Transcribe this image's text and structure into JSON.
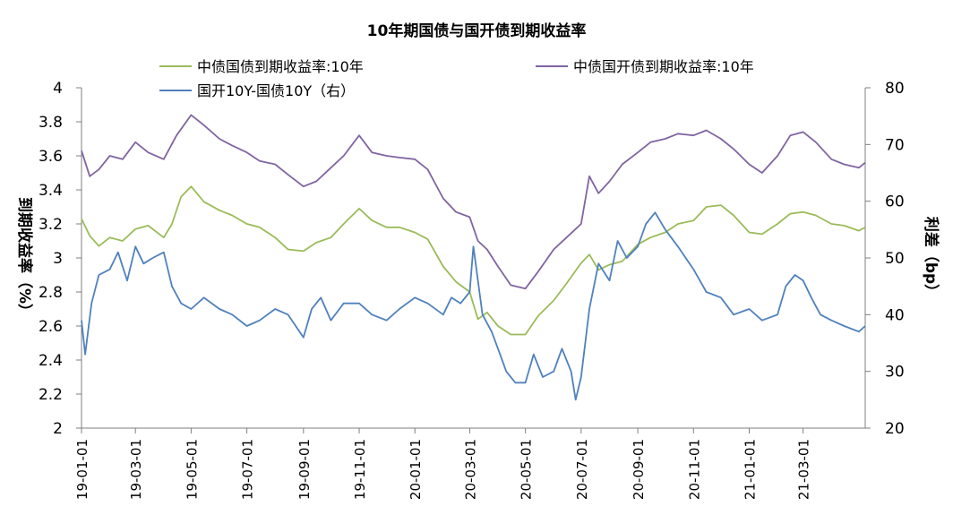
{
  "chart_data": {
    "type": "line",
    "title": "10年期国债与国开债到期收益率",
    "ylabel": "到期收益率（%）",
    "y2label": "利差（bp）",
    "xlabel": "",
    "ylim": [
      2,
      4
    ],
    "y2lim": [
      20,
      80
    ],
    "yticks": [
      "4",
      "3.8",
      "3.6",
      "3.4",
      "3.2",
      "3",
      "2.8",
      "2.6",
      "2.4",
      "2.2",
      "2"
    ],
    "y2ticks": [
      "80",
      "70",
      "60",
      "50",
      "40",
      "30",
      "20"
    ],
    "xlim": [
      "2019-01-01",
      "2021-05-08"
    ],
    "xticks": [
      "19-01-01",
      "19-03-01",
      "19-05-01",
      "19-07-01",
      "19-09-01",
      "19-11-01",
      "20-01-01",
      "20-03-01",
      "20-05-01",
      "20-07-01",
      "20-09-01",
      "20-11-01",
      "21-01-01",
      "21-03-01"
    ],
    "xtick_dates": [
      "2019-01-01",
      "2019-03-01",
      "2019-05-01",
      "2019-07-01",
      "2019-09-01",
      "2019-11-01",
      "2020-01-01",
      "2020-03-01",
      "2020-05-01",
      "2020-07-01",
      "2020-09-01",
      "2020-11-01",
      "2021-01-01",
      "2021-03-01"
    ],
    "legend_position": "top",
    "series": [
      {
        "name": "中债国债到期收益率:10年",
        "axis": "left",
        "color": "#9bbb59",
        "points": [
          [
            "2019-01-01",
            3.23
          ],
          [
            "2019-01-10",
            3.13
          ],
          [
            "2019-01-20",
            3.07
          ],
          [
            "2019-02-01",
            3.12
          ],
          [
            "2019-02-15",
            3.1
          ],
          [
            "2019-03-01",
            3.17
          ],
          [
            "2019-03-15",
            3.19
          ],
          [
            "2019-04-01",
            3.12
          ],
          [
            "2019-04-10",
            3.2
          ],
          [
            "2019-04-20",
            3.36
          ],
          [
            "2019-05-01",
            3.42
          ],
          [
            "2019-05-15",
            3.33
          ],
          [
            "2019-06-01",
            3.28
          ],
          [
            "2019-06-15",
            3.25
          ],
          [
            "2019-07-01",
            3.2
          ],
          [
            "2019-07-15",
            3.18
          ],
          [
            "2019-08-01",
            3.12
          ],
          [
            "2019-08-15",
            3.05
          ],
          [
            "2019-09-01",
            3.04
          ],
          [
            "2019-09-15",
            3.09
          ],
          [
            "2019-10-01",
            3.12
          ],
          [
            "2019-10-15",
            3.2
          ],
          [
            "2019-11-01",
            3.29
          ],
          [
            "2019-11-15",
            3.22
          ],
          [
            "2019-12-01",
            3.18
          ],
          [
            "2019-12-15",
            3.18
          ],
          [
            "2020-01-01",
            3.15
          ],
          [
            "2020-01-15",
            3.11
          ],
          [
            "2020-02-01",
            2.95
          ],
          [
            "2020-02-15",
            2.86
          ],
          [
            "2020-03-01",
            2.8
          ],
          [
            "2020-03-10",
            2.64
          ],
          [
            "2020-03-20",
            2.68
          ],
          [
            "2020-04-01",
            2.6
          ],
          [
            "2020-04-15",
            2.55
          ],
          [
            "2020-05-01",
            2.55
          ],
          [
            "2020-05-15",
            2.66
          ],
          [
            "2020-06-01",
            2.75
          ],
          [
            "2020-06-15",
            2.85
          ],
          [
            "2020-07-01",
            2.97
          ],
          [
            "2020-07-10",
            3.02
          ],
          [
            "2020-07-20",
            2.93
          ],
          [
            "2020-08-01",
            2.96
          ],
          [
            "2020-08-15",
            2.98
          ],
          [
            "2020-09-01",
            3.08
          ],
          [
            "2020-09-15",
            3.12
          ],
          [
            "2020-10-01",
            3.15
          ],
          [
            "2020-10-15",
            3.2
          ],
          [
            "2020-11-01",
            3.22
          ],
          [
            "2020-11-15",
            3.3
          ],
          [
            "2020-12-01",
            3.31
          ],
          [
            "2020-12-15",
            3.25
          ],
          [
            "2021-01-01",
            3.15
          ],
          [
            "2021-01-15",
            3.14
          ],
          [
            "2021-02-01",
            3.2
          ],
          [
            "2021-02-15",
            3.26
          ],
          [
            "2021-03-01",
            3.27
          ],
          [
            "2021-03-15",
            3.25
          ],
          [
            "2021-04-01",
            3.2
          ],
          [
            "2021-04-15",
            3.19
          ],
          [
            "2021-05-01",
            3.16
          ],
          [
            "2021-05-08",
            3.18
          ]
        ]
      },
      {
        "name": "中债国开债到期收益率:10年",
        "axis": "left",
        "color": "#8064a2",
        "points": [
          [
            "2019-01-01",
            3.63
          ],
          [
            "2019-01-10",
            3.48
          ],
          [
            "2019-01-20",
            3.52
          ],
          [
            "2019-02-01",
            3.6
          ],
          [
            "2019-02-15",
            3.58
          ],
          [
            "2019-03-01",
            3.68
          ],
          [
            "2019-03-15",
            3.62
          ],
          [
            "2019-04-01",
            3.58
          ],
          [
            "2019-04-15",
            3.72
          ],
          [
            "2019-05-01",
            3.84
          ],
          [
            "2019-05-15",
            3.78
          ],
          [
            "2019-06-01",
            3.7
          ],
          [
            "2019-06-15",
            3.66
          ],
          [
            "2019-07-01",
            3.62
          ],
          [
            "2019-07-15",
            3.57
          ],
          [
            "2019-08-01",
            3.55
          ],
          [
            "2019-08-15",
            3.49
          ],
          [
            "2019-09-01",
            3.42
          ],
          [
            "2019-09-15",
            3.45
          ],
          [
            "2019-10-01",
            3.53
          ],
          [
            "2019-10-15",
            3.6
          ],
          [
            "2019-11-01",
            3.72
          ],
          [
            "2019-11-15",
            3.62
          ],
          [
            "2019-12-01",
            3.6
          ],
          [
            "2019-12-15",
            3.59
          ],
          [
            "2020-01-01",
            3.58
          ],
          [
            "2020-01-15",
            3.52
          ],
          [
            "2020-02-01",
            3.35
          ],
          [
            "2020-02-15",
            3.27
          ],
          [
            "2020-03-01",
            3.24
          ],
          [
            "2020-03-10",
            3.1
          ],
          [
            "2020-03-20",
            3.05
          ],
          [
            "2020-04-01",
            2.95
          ],
          [
            "2020-04-15",
            2.84
          ],
          [
            "2020-05-01",
            2.82
          ],
          [
            "2020-05-15",
            2.92
          ],
          [
            "2020-06-01",
            3.05
          ],
          [
            "2020-06-15",
            3.12
          ],
          [
            "2020-07-01",
            3.2
          ],
          [
            "2020-07-10",
            3.48
          ],
          [
            "2020-07-20",
            3.38
          ],
          [
            "2020-08-01",
            3.45
          ],
          [
            "2020-08-15",
            3.55
          ],
          [
            "2020-09-01",
            3.62
          ],
          [
            "2020-09-15",
            3.68
          ],
          [
            "2020-10-01",
            3.7
          ],
          [
            "2020-10-15",
            3.73
          ],
          [
            "2020-11-01",
            3.72
          ],
          [
            "2020-11-15",
            3.75
          ],
          [
            "2020-12-01",
            3.7
          ],
          [
            "2020-12-15",
            3.64
          ],
          [
            "2021-01-01",
            3.55
          ],
          [
            "2021-01-15",
            3.5
          ],
          [
            "2021-02-01",
            3.6
          ],
          [
            "2021-02-15",
            3.72
          ],
          [
            "2021-03-01",
            3.74
          ],
          [
            "2021-03-15",
            3.68
          ],
          [
            "2021-04-01",
            3.58
          ],
          [
            "2021-04-15",
            3.55
          ],
          [
            "2021-05-01",
            3.53
          ],
          [
            "2021-05-08",
            3.56
          ]
        ]
      },
      {
        "name": "国开10Y-国债10Y（右）",
        "axis": "right",
        "color": "#4f81bd",
        "points": [
          [
            "2019-01-01",
            39
          ],
          [
            "2019-01-05",
            33
          ],
          [
            "2019-01-12",
            42
          ],
          [
            "2019-01-20",
            47
          ],
          [
            "2019-02-01",
            48
          ],
          [
            "2019-02-10",
            51
          ],
          [
            "2019-02-20",
            46
          ],
          [
            "2019-03-01",
            52
          ],
          [
            "2019-03-10",
            49
          ],
          [
            "2019-03-20",
            50
          ],
          [
            "2019-04-01",
            51
          ],
          [
            "2019-04-10",
            45
          ],
          [
            "2019-04-20",
            42
          ],
          [
            "2019-05-01",
            41
          ],
          [
            "2019-05-15",
            43
          ],
          [
            "2019-06-01",
            41
          ],
          [
            "2019-06-15",
            40
          ],
          [
            "2019-07-01",
            38
          ],
          [
            "2019-07-15",
            39
          ],
          [
            "2019-08-01",
            41
          ],
          [
            "2019-08-15",
            40
          ],
          [
            "2019-09-01",
            36
          ],
          [
            "2019-09-10",
            41
          ],
          [
            "2019-09-20",
            43
          ],
          [
            "2019-10-01",
            39
          ],
          [
            "2019-10-15",
            42
          ],
          [
            "2019-11-01",
            42
          ],
          [
            "2019-11-15",
            40
          ],
          [
            "2019-12-01",
            39
          ],
          [
            "2019-12-15",
            41
          ],
          [
            "2020-01-01",
            43
          ],
          [
            "2020-01-15",
            42
          ],
          [
            "2020-02-01",
            40
          ],
          [
            "2020-02-10",
            43
          ],
          [
            "2020-02-20",
            42
          ],
          [
            "2020-03-01",
            44
          ],
          [
            "2020-03-05",
            52
          ],
          [
            "2020-03-15",
            40
          ],
          [
            "2020-03-25",
            37
          ],
          [
            "2020-04-01",
            34
          ],
          [
            "2020-04-10",
            30
          ],
          [
            "2020-04-20",
            28
          ],
          [
            "2020-05-01",
            28
          ],
          [
            "2020-05-10",
            33
          ],
          [
            "2020-05-20",
            29
          ],
          [
            "2020-06-01",
            30
          ],
          [
            "2020-06-10",
            34
          ],
          [
            "2020-06-20",
            30
          ],
          [
            "2020-06-25",
            25
          ],
          [
            "2020-07-01",
            29
          ],
          [
            "2020-07-10",
            41
          ],
          [
            "2020-07-20",
            49
          ],
          [
            "2020-08-01",
            46
          ],
          [
            "2020-08-10",
            53
          ],
          [
            "2020-08-20",
            50
          ],
          [
            "2020-09-01",
            52
          ],
          [
            "2020-09-10",
            56
          ],
          [
            "2020-09-20",
            58
          ],
          [
            "2020-10-01",
            55
          ],
          [
            "2020-10-15",
            52
          ],
          [
            "2020-11-01",
            48
          ],
          [
            "2020-11-15",
            44
          ],
          [
            "2020-12-01",
            43
          ],
          [
            "2020-12-15",
            40
          ],
          [
            "2021-01-01",
            41
          ],
          [
            "2021-01-15",
            39
          ],
          [
            "2021-02-01",
            40
          ],
          [
            "2021-02-10",
            45
          ],
          [
            "2021-02-20",
            47
          ],
          [
            "2021-03-01",
            46
          ],
          [
            "2021-03-10",
            43
          ],
          [
            "2021-03-20",
            40
          ],
          [
            "2021-04-01",
            39
          ],
          [
            "2021-04-15",
            38
          ],
          [
            "2021-05-01",
            37
          ],
          [
            "2021-05-08",
            38
          ]
        ]
      }
    ]
  }
}
